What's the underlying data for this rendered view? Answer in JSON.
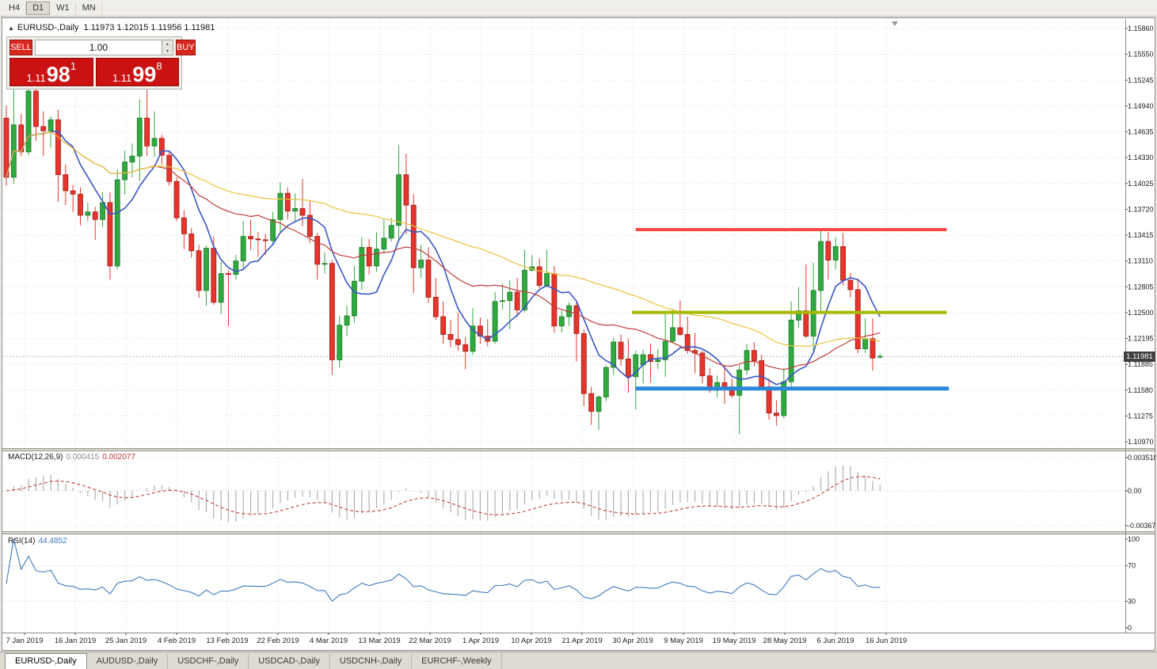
{
  "toolbar": {
    "periods": [
      "H4",
      "D1",
      "W1",
      "MN"
    ],
    "active": "D1"
  },
  "chart_header": {
    "symbol_title": "EURUSD-,Daily",
    "ohlc": "1.11973 1.12015 1.11956 1.11981"
  },
  "icons": {
    "collapse_arrow": "▲",
    "spin_up": "▲",
    "spin_down": "▼"
  },
  "trade_panel": {
    "sell_label": "SELL",
    "buy_label": "BUY",
    "volume": "1.00",
    "sell_price": {
      "prefix": "1.11",
      "big": "98",
      "sup": "1"
    },
    "buy_price": {
      "prefix": "1.11",
      "big": "99",
      "sup": "8"
    }
  },
  "indicators": {
    "macd_name": "MACD(12,26,9)",
    "macd_value_main": "0.000415",
    "macd_value_signal": "0.002077",
    "rsi_name": "RSI(14)",
    "rsi_value": "44.4852"
  },
  "axes": {
    "price_labels": [
      "1.15860",
      "1.15550",
      "1.15245",
      "1.14940",
      "1.14635",
      "1.14330",
      "1.14025",
      "1.13720",
      "1.13415",
      "1.13110",
      "1.12805",
      "1.12500",
      "1.12195",
      "1.11885",
      "1.11580",
      "1.11275",
      "1.10970"
    ],
    "macd_labels": [
      "0.003518",
      "0.00",
      "-0.00367"
    ],
    "rsi_labels": [
      "100",
      "70",
      "30",
      "0"
    ],
    "dates": [
      "7 Jan 2019",
      "16 Jan 2019",
      "25 Jan 2019",
      "4 Feb 2019",
      "13 Feb 2019",
      "22 Feb 2019",
      "4 Mar 2019",
      "13 Mar 2019",
      "22 Mar 2019",
      "1 Apr 2019",
      "10 Apr 2019",
      "21 Apr 2019",
      "30 Apr 2019",
      "9 May 2019",
      "19 May 2019",
      "28 May 2019",
      "6 Jun 2019",
      "16 Jun 2019"
    ],
    "current_price_label": "1.11981"
  },
  "tabs": [
    {
      "label": "EURUSD-,Daily",
      "active": true
    },
    {
      "label": "AUDUSD-,Daily",
      "active": false
    },
    {
      "label": "USDCHF-,Daily",
      "active": false
    },
    {
      "label": "USDCAD-,Daily",
      "active": false
    },
    {
      "label": "USDCNH-,Daily",
      "active": false
    },
    {
      "label": "EURCHF-,Weekly",
      "active": false
    }
  ],
  "chart_data": {
    "type": "candlestick",
    "symbol": "EURUSD",
    "timeframe": "Daily",
    "price_range": [
      1.1097,
      1.1586
    ],
    "current_price": 1.11981,
    "colors": {
      "bull": "#30a93f",
      "bull_border": "#1d7a2b",
      "bear": "#e5352c",
      "bear_border": "#a11b13",
      "grid": "#d9d9d9"
    },
    "moving_averages": [
      {
        "name": "ma-fast-line",
        "window": 7,
        "color": "#3a57c4",
        "width": 1.6
      },
      {
        "name": "ma-medium-line",
        "window": 20,
        "color": "#c43a3a",
        "width": 1.2
      },
      {
        "name": "ma-slow-line",
        "window": 50,
        "color": "#e9c33c",
        "width": 1.2
      }
    ],
    "macd": {
      "fast": 12,
      "slow": 26,
      "signal": 9,
      "range": [
        -0.00367,
        0.003518
      ],
      "histogram_color": "#b0b0b0",
      "signal_color": "#c43a3a"
    },
    "rsi": {
      "period": 14,
      "levels": [
        70,
        30
      ],
      "color": "#3e7bbf"
    },
    "trend_lines": [
      {
        "name": "resistance-line",
        "price": 1.1348,
        "from_bar": 85,
        "to_bar": 127,
        "color": "#fb4840",
        "width": 4
      },
      {
        "name": "pivot-line",
        "price": 1.125,
        "from_bar": 84.5,
        "to_bar": 127,
        "color": "#a6b800",
        "width": 4
      },
      {
        "name": "support-line",
        "price": 1.116,
        "from_bar": 85,
        "to_bar": 127.3,
        "color": "#2b88d9",
        "width": 5
      }
    ],
    "candles": [
      [
        1.148,
        1.1495,
        1.14,
        1.141
      ],
      [
        1.141,
        1.1518,
        1.1402,
        1.1472
      ],
      [
        1.1472,
        1.1485,
        1.1435,
        1.144
      ],
      [
        1.144,
        1.1522,
        1.1436,
        1.1512
      ],
      [
        1.1512,
        1.1528,
        1.1453,
        1.147
      ],
      [
        1.147,
        1.1488,
        1.1435,
        1.1465
      ],
      [
        1.1465,
        1.1482,
        1.1445,
        1.1478
      ],
      [
        1.1478,
        1.149,
        1.1381,
        1.1413
      ],
      [
        1.1413,
        1.1425,
        1.1377,
        1.1394
      ],
      [
        1.1394,
        1.1401,
        1.1369,
        1.139
      ],
      [
        1.139,
        1.1398,
        1.1353,
        1.1365
      ],
      [
        1.1365,
        1.138,
        1.1358,
        1.1369
      ],
      [
        1.1369,
        1.1375,
        1.1336,
        1.136
      ],
      [
        1.136,
        1.1392,
        1.1351,
        1.138
      ],
      [
        1.138,
        1.1392,
        1.1289,
        1.1305
      ],
      [
        1.1305,
        1.1419,
        1.1301,
        1.1407
      ],
      [
        1.1407,
        1.1442,
        1.139,
        1.1428
      ],
      [
        1.1428,
        1.145,
        1.141,
        1.1435
      ],
      [
        1.1435,
        1.1502,
        1.1406,
        1.148
      ],
      [
        1.148,
        1.1515,
        1.1435,
        1.1447
      ],
      [
        1.1447,
        1.1488,
        1.1434,
        1.1456
      ],
      [
        1.1456,
        1.146,
        1.1425,
        1.1436
      ],
      [
        1.1436,
        1.144,
        1.14,
        1.1405
      ],
      [
        1.1405,
        1.141,
        1.1358,
        1.1362
      ],
      [
        1.1362,
        1.1371,
        1.1325,
        1.1343
      ],
      [
        1.1343,
        1.135,
        1.1315,
        1.1323
      ],
      [
        1.1323,
        1.133,
        1.1267,
        1.1276
      ],
      [
        1.1276,
        1.1329,
        1.1258,
        1.1326
      ],
      [
        1.1326,
        1.134,
        1.1259,
        1.1262
      ],
      [
        1.1262,
        1.131,
        1.1248,
        1.1296
      ],
      [
        1.1296,
        1.13,
        1.1234,
        1.1295
      ],
      [
        1.1295,
        1.1318,
        1.1289,
        1.1311
      ],
      [
        1.1311,
        1.1358,
        1.1301,
        1.134
      ],
      [
        1.134,
        1.136,
        1.1324,
        1.1337
      ],
      [
        1.1337,
        1.1345,
        1.1316,
        1.1336
      ],
      [
        1.1336,
        1.1343,
        1.1318,
        1.1335
      ],
      [
        1.1335,
        1.1369,
        1.133,
        1.136
      ],
      [
        1.136,
        1.1404,
        1.1345,
        1.1391
      ],
      [
        1.1391,
        1.1398,
        1.136,
        1.137
      ],
      [
        1.137,
        1.1391,
        1.1358,
        1.1373
      ],
      [
        1.1373,
        1.1408,
        1.1352,
        1.1365
      ],
      [
        1.1365,
        1.1383,
        1.1332,
        1.134
      ],
      [
        1.134,
        1.1344,
        1.1289,
        1.1307
      ],
      [
        1.1307,
        1.1321,
        1.1296,
        1.1308
      ],
      [
        1.1308,
        1.1312,
        1.1176,
        1.1194
      ],
      [
        1.1194,
        1.1246,
        1.1185,
        1.1235
      ],
      [
        1.1235,
        1.1258,
        1.1222,
        1.1246
      ],
      [
        1.1246,
        1.1305,
        1.1238,
        1.1287
      ],
      [
        1.1287,
        1.1339,
        1.1277,
        1.1327
      ],
      [
        1.1327,
        1.1337,
        1.1295,
        1.1305
      ],
      [
        1.1305,
        1.1345,
        1.1298,
        1.1325
      ],
      [
        1.1325,
        1.136,
        1.132,
        1.1338
      ],
      [
        1.1338,
        1.1362,
        1.1334,
        1.1353
      ],
      [
        1.1353,
        1.1448,
        1.1335,
        1.1413
      ],
      [
        1.1413,
        1.1438,
        1.1343,
        1.1377
      ],
      [
        1.1377,
        1.139,
        1.1273,
        1.1303
      ],
      [
        1.1303,
        1.133,
        1.1291,
        1.1312
      ],
      [
        1.1312,
        1.1327,
        1.1261,
        1.1268
      ],
      [
        1.1268,
        1.1291,
        1.1241,
        1.1245
      ],
      [
        1.1245,
        1.1263,
        1.1213,
        1.1224
      ],
      [
        1.1224,
        1.1241,
        1.1209,
        1.1218
      ],
      [
        1.1218,
        1.125,
        1.1205,
        1.1212
      ],
      [
        1.1212,
        1.1221,
        1.1183,
        1.1204
      ],
      [
        1.1204,
        1.1255,
        1.12,
        1.1234
      ],
      [
        1.1234,
        1.1244,
        1.1213,
        1.1222
      ],
      [
        1.1222,
        1.1242,
        1.121,
        1.1216
      ],
      [
        1.1216,
        1.1274,
        1.1213,
        1.1263
      ],
      [
        1.1263,
        1.1284,
        1.1253,
        1.1264
      ],
      [
        1.1264,
        1.1288,
        1.123,
        1.1274
      ],
      [
        1.1274,
        1.1291,
        1.1245,
        1.1253
      ],
      [
        1.1253,
        1.1324,
        1.125,
        1.13
      ],
      [
        1.13,
        1.1318,
        1.1298,
        1.1304
      ],
      [
        1.1304,
        1.1314,
        1.1279,
        1.1282
      ],
      [
        1.1282,
        1.1324,
        1.128,
        1.1296
      ],
      [
        1.1296,
        1.1305,
        1.1226,
        1.1234
      ],
      [
        1.1234,
        1.1252,
        1.1226,
        1.1245
      ],
      [
        1.1245,
        1.1262,
        1.1234,
        1.1258
      ],
      [
        1.1258,
        1.1263,
        1.1192,
        1.1225
      ],
      [
        1.1225,
        1.123,
        1.1139,
        1.1154
      ],
      [
        1.1154,
        1.1162,
        1.1117,
        1.1133
      ],
      [
        1.1133,
        1.1152,
        1.1111,
        1.115
      ],
      [
        1.115,
        1.1187,
        1.1145,
        1.1185
      ],
      [
        1.1185,
        1.122,
        1.1176,
        1.1215
      ],
      [
        1.1215,
        1.1224,
        1.1187,
        1.1195
      ],
      [
        1.1195,
        1.1219,
        1.1155,
        1.1174
      ],
      [
        1.1174,
        1.1205,
        1.1135,
        1.12
      ],
      [
        1.1188,
        1.1206,
        1.1166,
        1.12
      ],
      [
        1.12,
        1.1213,
        1.1167,
        1.1192
      ],
      [
        1.1192,
        1.1207,
        1.1183,
        1.1194
      ],
      [
        1.1194,
        1.1251,
        1.1174,
        1.1216
      ],
      [
        1.1216,
        1.1254,
        1.1214,
        1.1232
      ],
      [
        1.1232,
        1.1264,
        1.1222,
        1.1224
      ],
      [
        1.1224,
        1.1245,
        1.1201,
        1.1205
      ],
      [
        1.1205,
        1.1226,
        1.1178,
        1.1202
      ],
      [
        1.1202,
        1.1205,
        1.1166,
        1.1175
      ],
      [
        1.1175,
        1.1184,
        1.1155,
        1.1158
      ],
      [
        1.1158,
        1.1175,
        1.115,
        1.1167
      ],
      [
        1.1167,
        1.1188,
        1.1142,
        1.1162
      ],
      [
        1.1162,
        1.1172,
        1.1149,
        1.1152
      ],
      [
        1.1152,
        1.1188,
        1.1106,
        1.1182
      ],
      [
        1.1182,
        1.1213,
        1.1176,
        1.1205
      ],
      [
        1.1205,
        1.1215,
        1.1186,
        1.1193
      ],
      [
        1.1193,
        1.12,
        1.1159,
        1.1162
      ],
      [
        1.1162,
        1.1172,
        1.1123,
        1.1131
      ],
      [
        1.1131,
        1.1146,
        1.1116,
        1.1128
      ],
      [
        1.1128,
        1.1184,
        1.1125,
        1.1168
      ],
      [
        1.1168,
        1.1263,
        1.116,
        1.1241
      ],
      [
        1.1241,
        1.128,
        1.1232,
        1.1252
      ],
      [
        1.1252,
        1.1307,
        1.122,
        1.1222
      ],
      [
        1.1222,
        1.1309,
        1.1201,
        1.1276
      ],
      [
        1.1276,
        1.1348,
        1.1251,
        1.1334
      ],
      [
        1.1334,
        1.1345,
        1.1289,
        1.1312
      ],
      [
        1.1312,
        1.1339,
        1.1301,
        1.1328
      ],
      [
        1.1328,
        1.1344,
        1.1282,
        1.1288
      ],
      [
        1.1288,
        1.1297,
        1.1268,
        1.1277
      ],
      [
        1.1277,
        1.129,
        1.1202,
        1.1207
      ],
      [
        1.1207,
        1.1243,
        1.1202,
        1.1219
      ],
      [
        1.1219,
        1.1243,
        1.1181,
        1.1196
      ],
      [
        1.11973,
        1.12015,
        1.11956,
        1.11981
      ]
    ]
  }
}
